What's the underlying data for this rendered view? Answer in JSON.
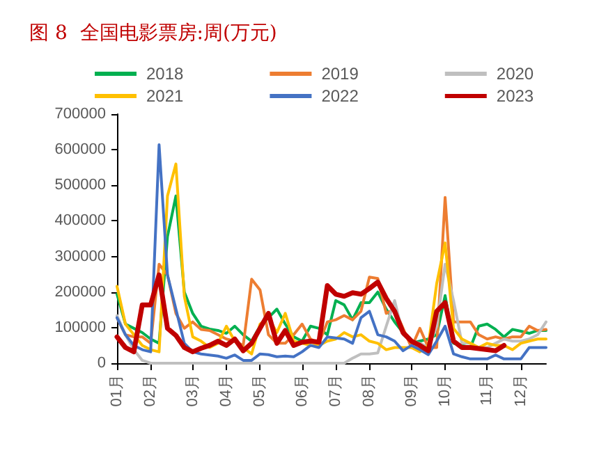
{
  "chart_data": {
    "type": "line",
    "title": "图 8  全国电影票房:周(万元)",
    "categories": [
      "01月",
      null,
      null,
      null,
      "02月",
      null,
      null,
      null,
      null,
      "03月",
      null,
      null,
      null,
      "04月",
      null,
      null,
      null,
      "05月",
      null,
      null,
      null,
      null,
      "06月",
      null,
      null,
      null,
      "07月",
      null,
      null,
      null,
      "08月",
      null,
      null,
      null,
      null,
      "09月",
      null,
      null,
      null,
      "10月",
      null,
      null,
      null,
      null,
      "11月",
      null,
      null,
      null,
      "12月",
      null,
      null,
      null
    ],
    "series": [
      {
        "name": "2018",
        "color": "#00b050",
        "values": [
          194000,
          110000,
          98000,
          86000,
          68000,
          56000,
          356000,
          470000,
          200000,
          140000,
          104000,
          96000,
          92000,
          84000,
          104000,
          80000,
          62000,
          104000,
          128000,
          152000,
          110000,
          74000,
          62000,
          104000,
          98000,
          80000,
          176000,
          164000,
          122000,
          170000,
          170000,
          200000,
          152000,
          116000,
          86000,
          56000,
          62000,
          68000,
          80000,
          190000,
          56000,
          50000,
          44000,
          104000,
          110000,
          95000,
          74000,
          95000,
          90000,
          84000,
          92000,
          92000
        ]
      },
      {
        "name": "2019",
        "color": "#ed7d31",
        "values": [
          128000,
          80000,
          74000,
          74000,
          56000,
          278000,
          248000,
          140000,
          98000,
          116000,
          95000,
          92000,
          80000,
          68000,
          62000,
          50000,
          236000,
          206000,
          80000,
          56000,
          56000,
          80000,
          110000,
          68000,
          56000,
          116000,
          122000,
          134000,
          122000,
          146000,
          242000,
          238000,
          140000,
          152000,
          98000,
          44000,
          98000,
          44000,
          44000,
          466000,
          116000,
          116000,
          116000,
          80000,
          68000,
          74000,
          68000,
          74000,
          74000,
          104000,
          92000,
          95000
        ]
      },
      {
        "name": "2020",
        "color": "#bfbfbf",
        "values": [
          134000,
          80000,
          38000,
          8000,
          0,
          0,
          0,
          0,
          0,
          0,
          0,
          0,
          0,
          0,
          0,
          0,
          0,
          0,
          0,
          0,
          0,
          0,
          0,
          0,
          0,
          0,
          0,
          0,
          14000,
          26000,
          26000,
          29000,
          104000,
          176000,
          80000,
          62000,
          56000,
          44000,
          104000,
          278000,
          176000,
          56000,
          56000,
          44000,
          44000,
          56000,
          68000,
          62000,
          62000,
          68000,
          80000,
          116000
        ]
      },
      {
        "name": "2021",
        "color": "#ffc000",
        "values": [
          216000,
          110000,
          80000,
          50000,
          38000,
          32000,
          470000,
          560000,
          188000,
          74000,
          62000,
          44000,
          56000,
          104000,
          62000,
          44000,
          26000,
          110000,
          128000,
          86000,
          140000,
          62000,
          56000,
          50000,
          50000,
          62000,
          68000,
          86000,
          74000,
          80000,
          62000,
          56000,
          38000,
          44000,
          44000,
          44000,
          32000,
          50000,
          224000,
          338000,
          98000,
          68000,
          56000,
          44000,
          56000,
          50000,
          50000,
          38000,
          56000,
          62000,
          68000,
          68000
        ]
      },
      {
        "name": "2022",
        "color": "#4472c4",
        "values": [
          128000,
          80000,
          50000,
          38000,
          32000,
          614000,
          248000,
          152000,
          56000,
          32000,
          26000,
          23000,
          20000,
          14000,
          23000,
          8000,
          8000,
          26000,
          24000,
          18000,
          20000,
          18000,
          32000,
          50000,
          44000,
          74000,
          71000,
          68000,
          56000,
          128000,
          146000,
          80000,
          74000,
          62000,
          35000,
          50000,
          38000,
          24000,
          62000,
          104000,
          26000,
          18000,
          12000,
          12000,
          12000,
          23000,
          12000,
          12000,
          12000,
          44000,
          44000,
          44000
        ]
      },
      {
        "name": "2023",
        "color": "#c00000",
        "values": [
          74000,
          44000,
          32000,
          164000,
          164000,
          248000,
          98000,
          78000,
          44000,
          32000,
          42000,
          50000,
          62000,
          50000,
          68000,
          35000,
          56000,
          98000,
          140000,
          56000,
          92000,
          50000,
          59000,
          62000,
          59000,
          218000,
          194000,
          188000,
          198000,
          194000,
          210000,
          228000,
          182000,
          146000,
          86000,
          62000,
          50000,
          35000,
          146000,
          170000,
          62000,
          44000,
          44000,
          41000,
          38000,
          35000,
          50000,
          null,
          null,
          null,
          null,
          null
        ]
      }
    ],
    "ylim": [
      0,
      700000
    ],
    "yticks": [
      0,
      100000,
      200000,
      300000,
      400000,
      500000,
      600000,
      700000
    ],
    "grid": false,
    "legend": "top",
    "marker": "none",
    "line_style": "solid"
  }
}
